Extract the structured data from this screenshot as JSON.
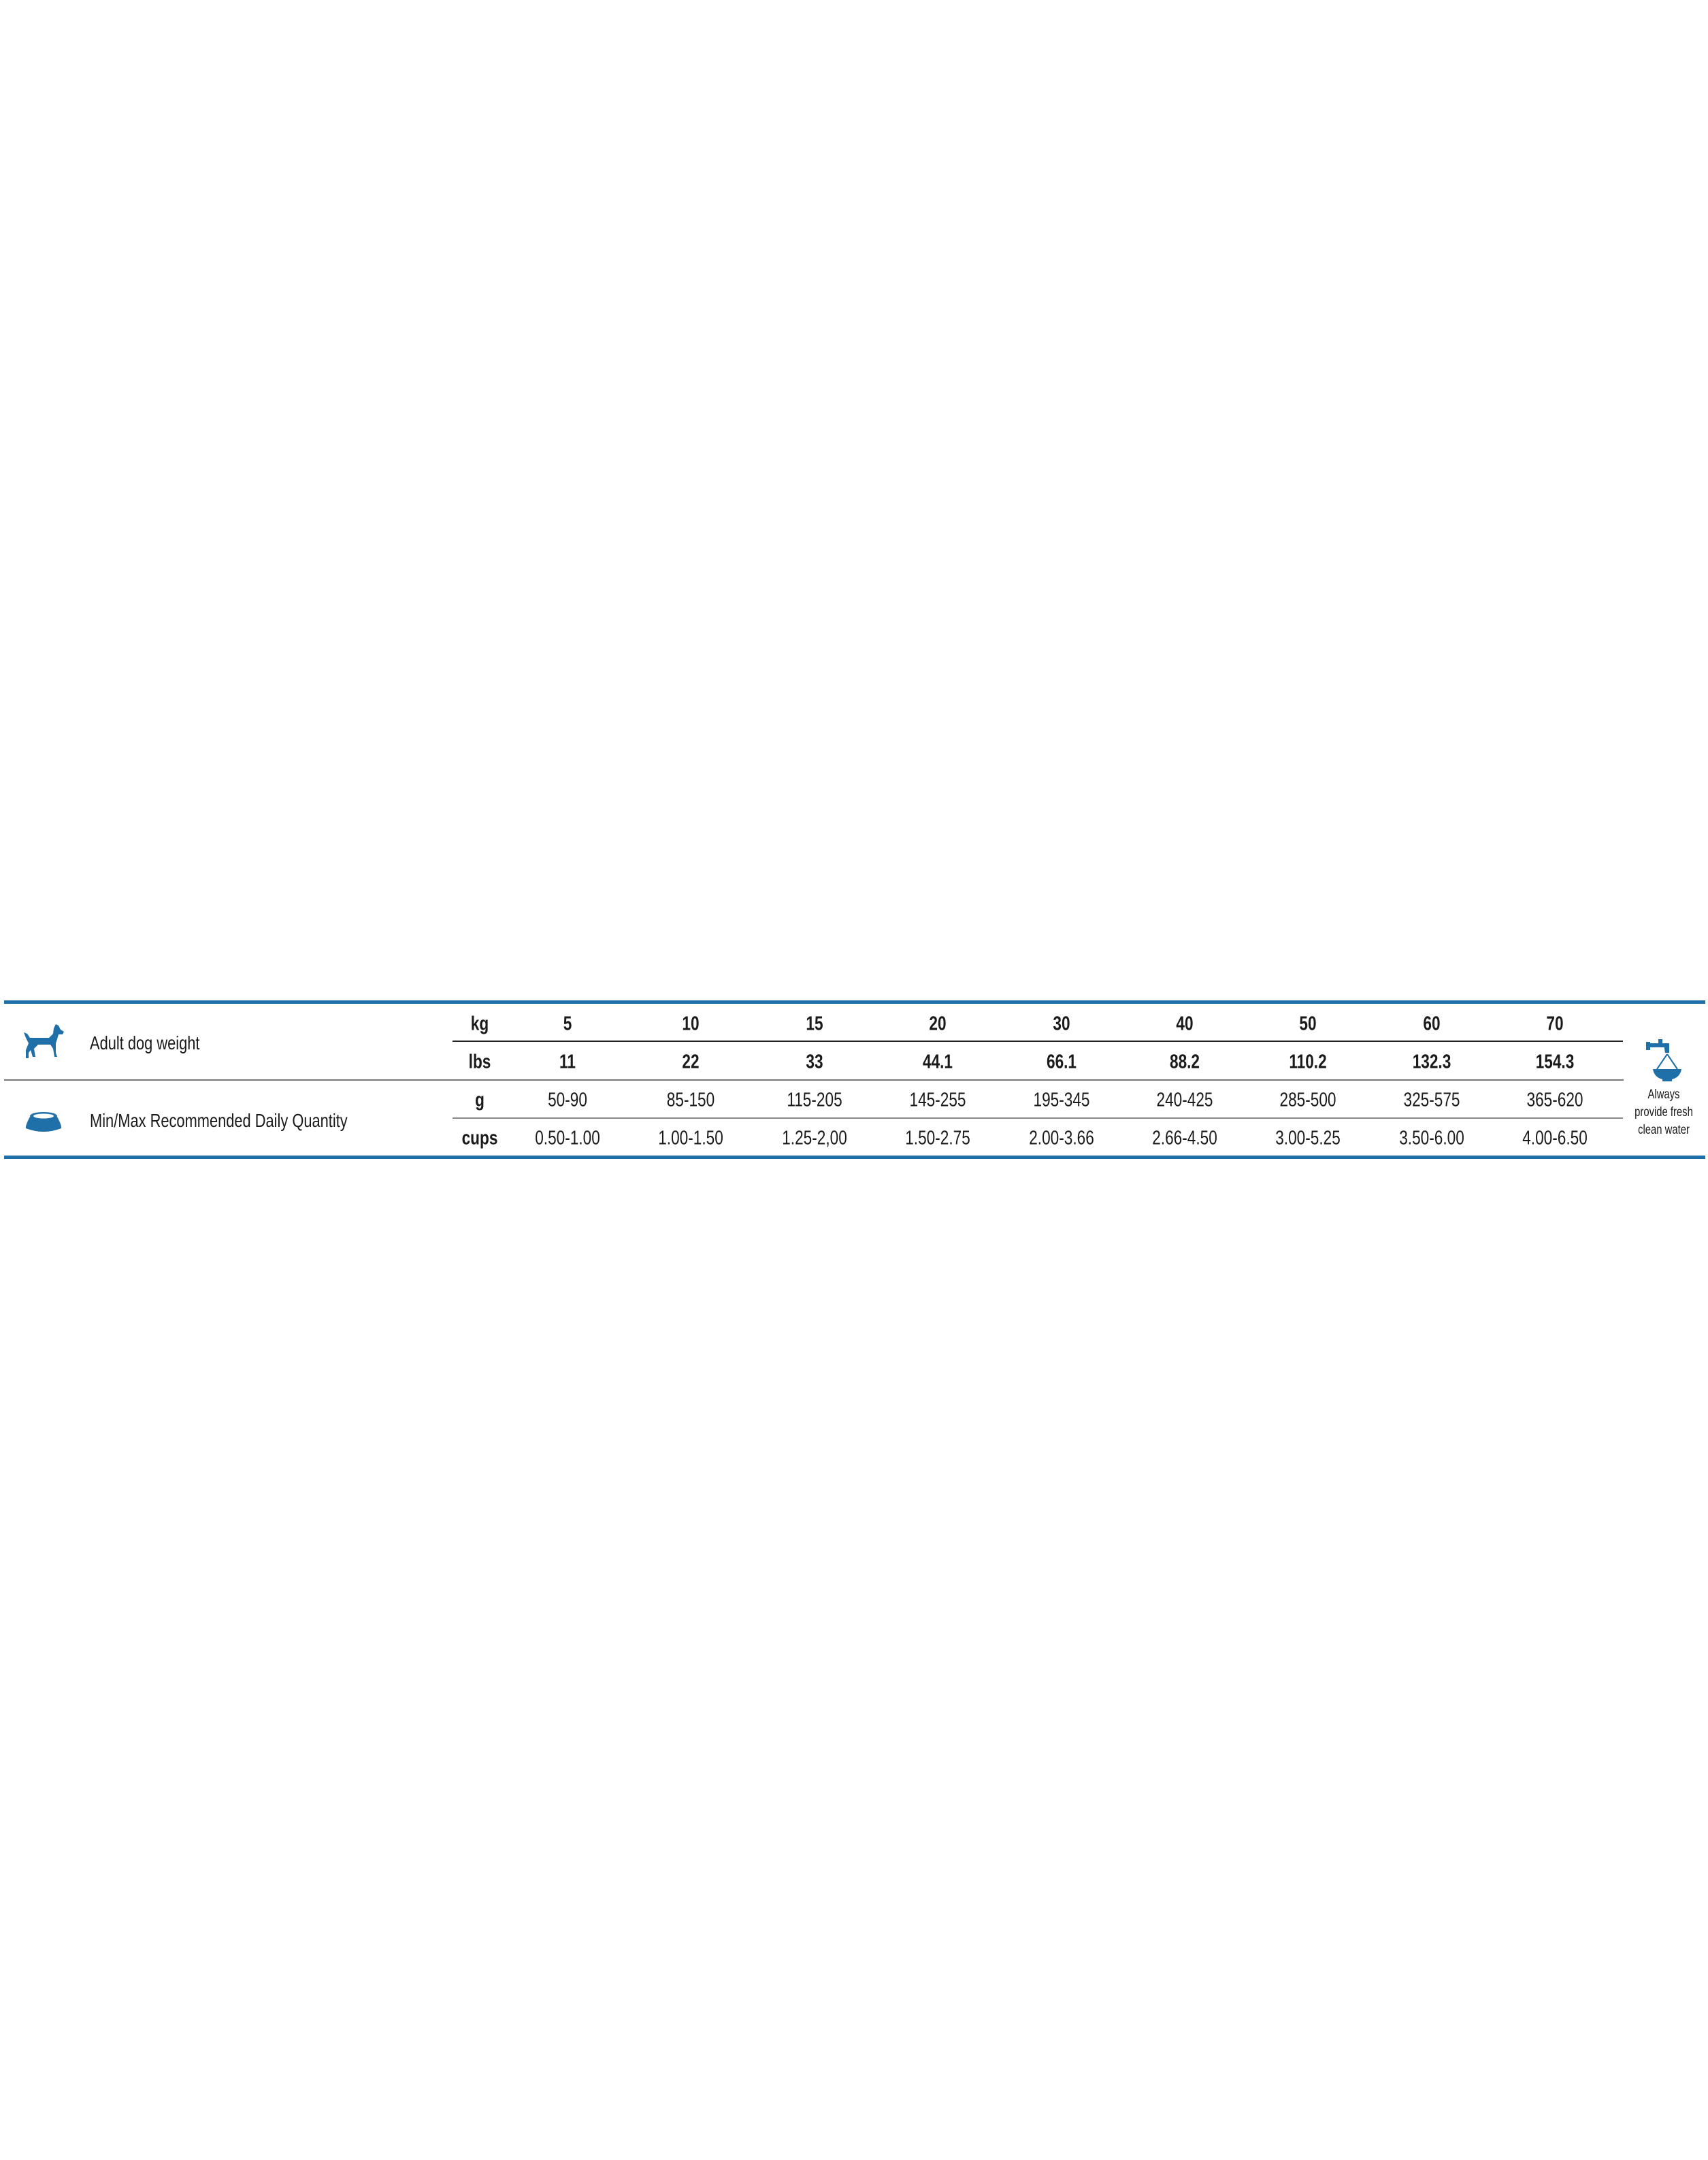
{
  "accent_color": "#1f6fa8",
  "rows": {
    "weight_label": "Adult dog weight",
    "quantity_label": "Min/Max Recommended Daily Quantity",
    "weight_icon": "dog-icon",
    "quantity_icon": "food-bowl-icon"
  },
  "units": [
    "kg",
    "lbs",
    "g",
    "cups"
  ],
  "table": {
    "kg": [
      "5",
      "10",
      "15",
      "20",
      "30",
      "40",
      "50",
      "60",
      "70"
    ],
    "lbs": [
      "11",
      "22",
      "33",
      "44.1",
      "66.1",
      "88.2",
      "110.2",
      "132.3",
      "154.3"
    ],
    "g": [
      "50-90",
      "85-150",
      "115-205",
      "145-255",
      "195-345",
      "240-425",
      "285-500",
      "325-575",
      "365-620"
    ],
    "cups": [
      "0.50-1.00",
      "1.00-1.50",
      "1.25-2,00",
      "1.50-2.75",
      "2.00-3.66",
      "2.66-4.50",
      "3.00-5.25",
      "3.50-6.00",
      "4.00-6.50"
    ]
  },
  "water": {
    "icon": "water-tap-bowl-icon",
    "lines": [
      "Always",
      "provide fresh",
      "clean water"
    ]
  }
}
